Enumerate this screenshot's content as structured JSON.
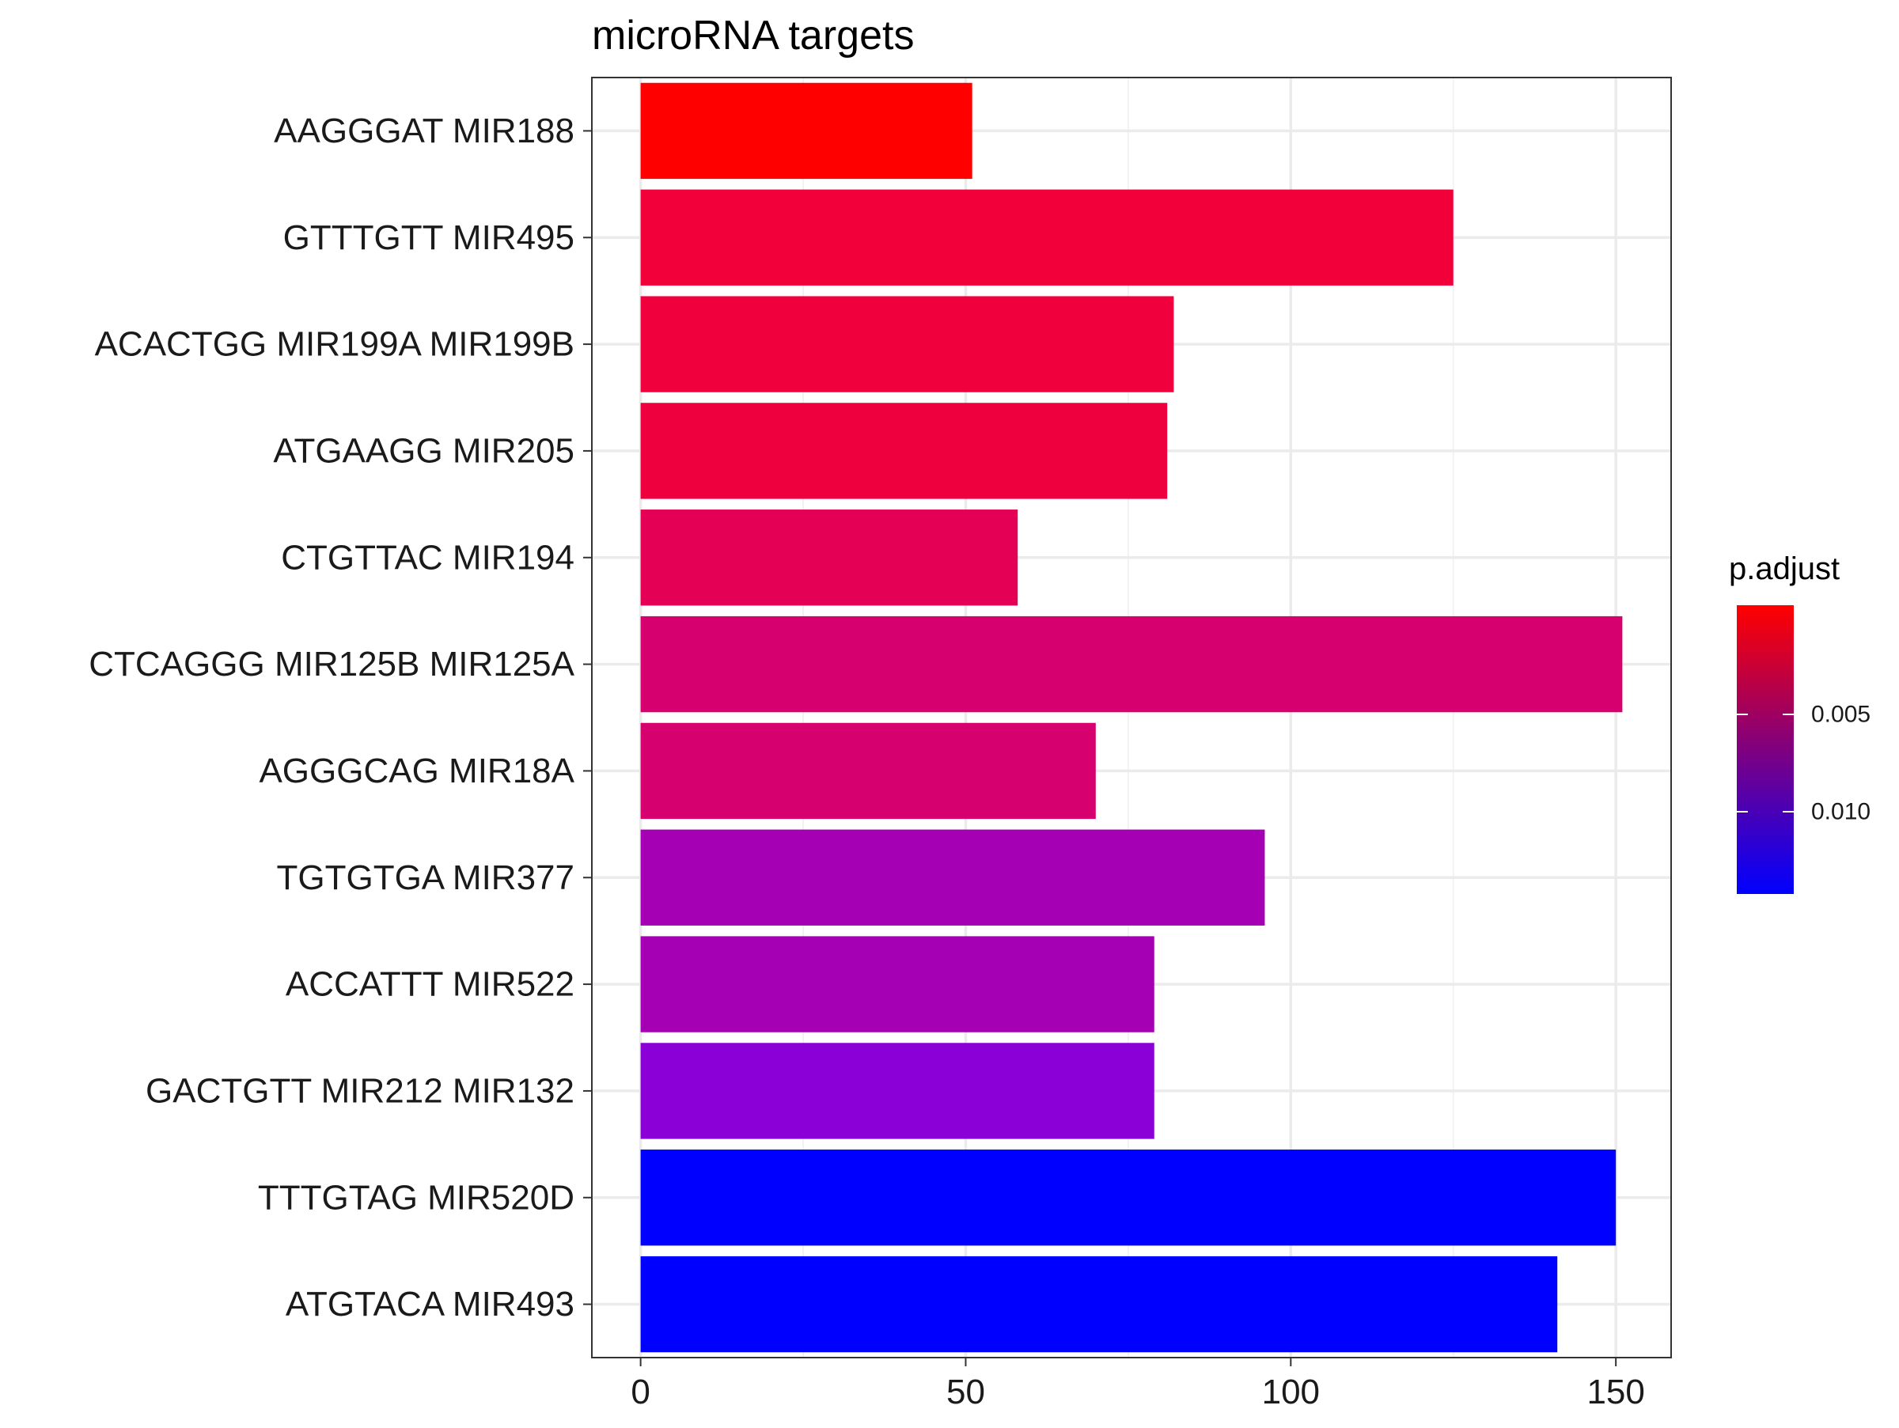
{
  "chart_data": {
    "type": "bar",
    "orientation": "horizontal",
    "title": "microRNA targets",
    "xlabel": "",
    "ylabel": "",
    "categories": [
      "AAGGGAT MIR188",
      "GTTTGTT MIR495",
      "ACACTGG MIR199A MIR199B",
      "ATGAAGG MIR205",
      "CTGTTAC MIR194",
      "CTCAGGG MIR125B MIR125A",
      "AGGGCAG MIR18A",
      "TGTGTGA MIR377",
      "ACCATTT MIR522",
      "GACTGTT MIR212 MIR132",
      "TTTGTAG MIR520D",
      "ATGTACA MIR493"
    ],
    "values": [
      51,
      125,
      82,
      81,
      58,
      151,
      70,
      96,
      79,
      79,
      150,
      141
    ],
    "bar_colors": [
      "#FF0000",
      "#F2003A",
      "#F0003C",
      "#EE003F",
      "#E40054",
      "#D6006E",
      "#D6006E",
      "#A500B3",
      "#A500B3",
      "#8A00D6",
      "#0000FF",
      "#0000FF"
    ],
    "xlim": [
      -7.5,
      158.5
    ],
    "xticks": [
      0,
      50,
      100,
      150
    ],
    "xtick_labels": [
      "0",
      "50",
      "100",
      "150"
    ],
    "grid": true,
    "legend": {
      "title": "p.adjust",
      "placement": "right",
      "type": "colorbar",
      "tick_labels": [
        "0.005",
        "0.010"
      ],
      "colors": [
        "#FF0000",
        "#0000FF"
      ]
    }
  }
}
